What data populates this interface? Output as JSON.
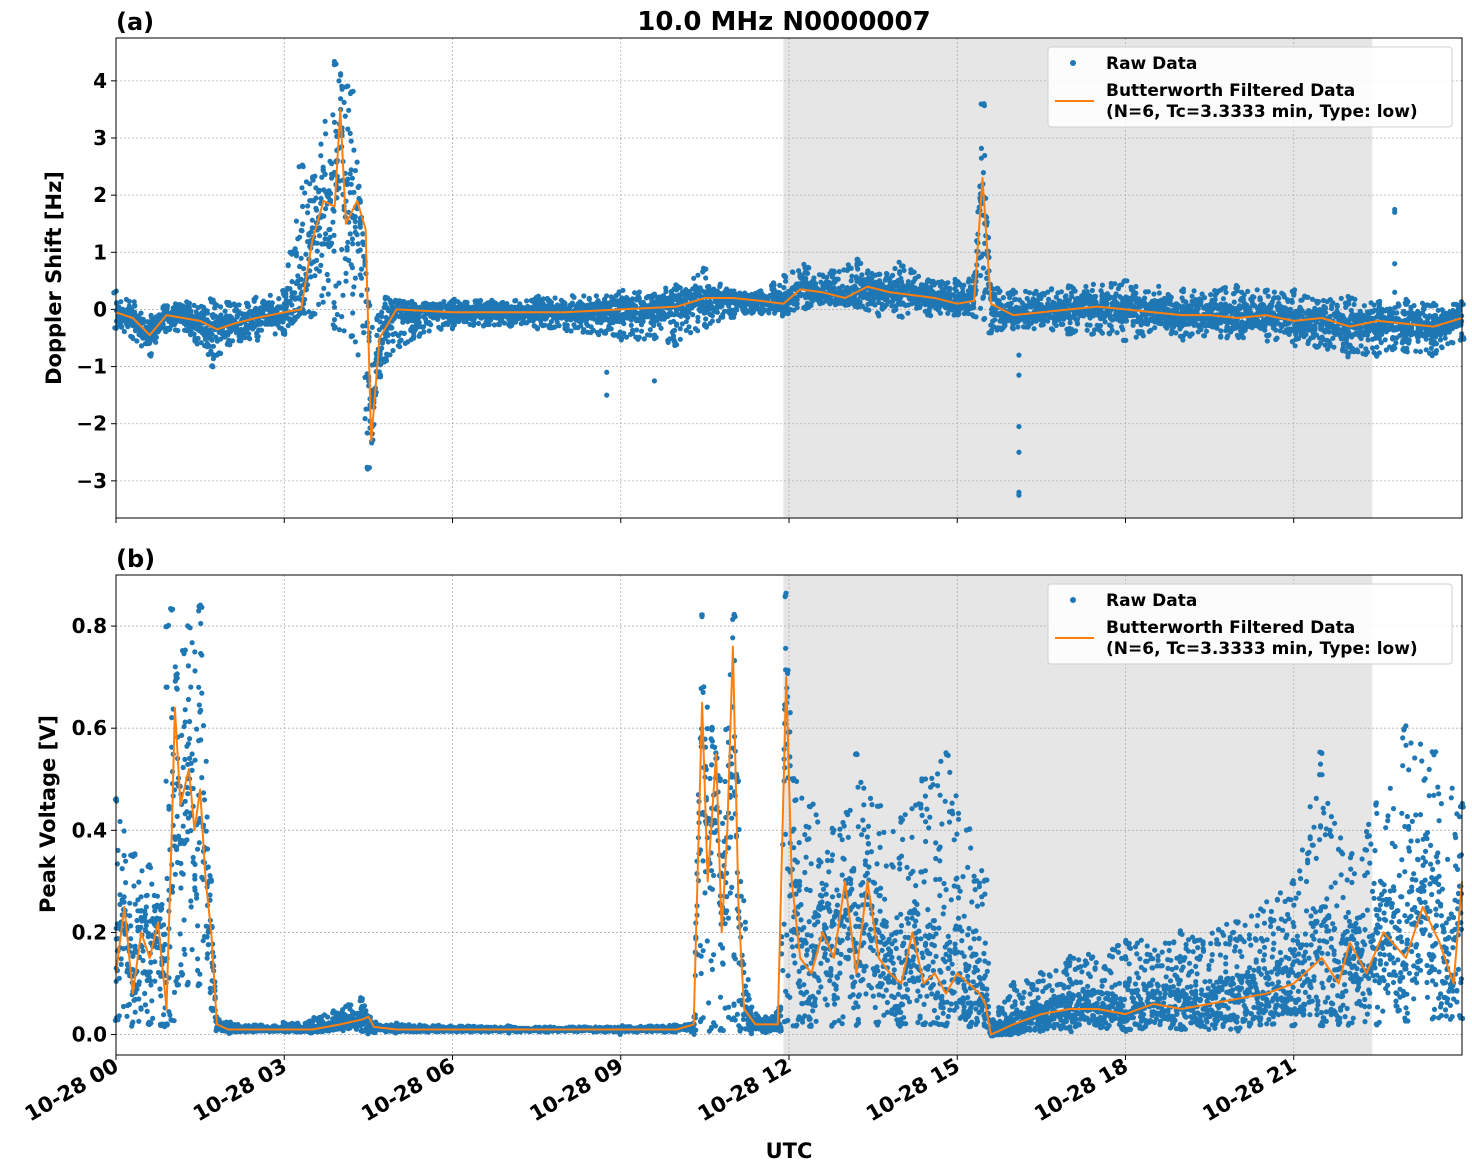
{
  "figure": {
    "title": "10.0 MHz N0000007",
    "xlabel": "UTC",
    "x_tick_labels": [
      "10-28 00",
      "10-28 03",
      "10-28 06",
      "10-28 09",
      "10-28 12",
      "10-28 15",
      "10-28 18",
      "10-28 21"
    ]
  },
  "colors": {
    "raw": "#1f77b4",
    "filtered": "#ff7f0e",
    "shade": "#e6e6e6",
    "grid": "#b0b0b0"
  },
  "chart_data": [
    {
      "panel_label": "(a)",
      "type": "line",
      "ylabel": "Doppler Shift [Hz]",
      "xlim_hours": [
        0,
        24
      ],
      "ylim": [
        -3.65,
        4.75
      ],
      "y_ticks": [
        4,
        3,
        2,
        1,
        0,
        -1,
        -2,
        -3
      ],
      "y_tick_labels": [
        "4",
        "3",
        "2",
        "1",
        "0",
        "−1",
        "−2",
        "−3"
      ],
      "shaded_span_hours": [
        11.9,
        22.4
      ],
      "legend": {
        "raw_label": "Raw Data",
        "filtered_label_line1": "Butterworth Filtered Data",
        "filtered_label_line2": "(N=6, Tc=3.3333 min, Type: low)",
        "placement": "top-right"
      },
      "raw_band": {
        "x": [
          0,
          0.3,
          0.6,
          0.9,
          1.3,
          1.7,
          2.0,
          2.5,
          3.0,
          3.3,
          3.5,
          3.9,
          4.2,
          4.5,
          4.8,
          5.3,
          6.0,
          7.5,
          9.0,
          10.0,
          10.5,
          11.0,
          11.5,
          11.9,
          12.3,
          12.8,
          13.2,
          13.6,
          14.0,
          14.5,
          15.0,
          15.3,
          15.45,
          15.6,
          16.0,
          17.0,
          18.0,
          19.0,
          20.0,
          21.0,
          22.0,
          22.5,
          23.0,
          23.5,
          24.0
        ],
        "high": [
          0.3,
          0.1,
          -0.1,
          0.1,
          0.1,
          0.15,
          0.1,
          0.2,
          0.3,
          2.5,
          2.3,
          4.3,
          3.8,
          0.1,
          0.2,
          0.1,
          0.15,
          0.2,
          0.3,
          0.4,
          0.7,
          0.3,
          0.3,
          0.6,
          0.75,
          0.65,
          0.9,
          0.6,
          0.8,
          0.5,
          0.5,
          0.6,
          3.6,
          0.4,
          0.3,
          0.4,
          0.5,
          0.35,
          0.4,
          0.3,
          0.2,
          0.1,
          0.15,
          0.1,
          0.1
        ],
        "low": [
          -0.3,
          -0.5,
          -0.8,
          -0.35,
          -0.4,
          -1.0,
          -0.6,
          -0.5,
          -0.4,
          -0.05,
          -0.1,
          -0.3,
          -0.5,
          -2.8,
          -0.9,
          -0.5,
          -0.3,
          -0.3,
          -0.5,
          -0.6,
          -0.3,
          -0.1,
          -0.05,
          -0.1,
          0.0,
          0.1,
          0.05,
          -0.1,
          -0.1,
          -0.1,
          -0.1,
          -0.1,
          -0.2,
          -0.4,
          -0.3,
          -0.4,
          -0.5,
          -0.5,
          -0.5,
          -0.6,
          -0.8,
          -0.8,
          -0.7,
          -0.8,
          -0.5
        ]
      },
      "raw_outliers": {
        "x": [
          8.75,
          8.75,
          9.6,
          16.1,
          16.1,
          16.1,
          16.1,
          16.1,
          16.1,
          22.8,
          22.8,
          22.8,
          22.8
        ],
        "y": [
          -1.1,
          -1.5,
          -1.25,
          -0.8,
          -1.15,
          -2.05,
          -2.5,
          -3.2,
          -3.25,
          1.75,
          1.7,
          0.8,
          0.3
        ]
      },
      "filtered": {
        "x": [
          0,
          0.3,
          0.6,
          0.9,
          1.2,
          1.5,
          1.8,
          2.1,
          2.5,
          3.0,
          3.3,
          3.5,
          3.7,
          3.9,
          4.0,
          4.1,
          4.3,
          4.45,
          4.55,
          4.7,
          5.0,
          6.0,
          7.0,
          8.0,
          9.0,
          10.0,
          10.5,
          11.0,
          11.5,
          11.9,
          12.2,
          12.6,
          13.0,
          13.4,
          13.8,
          14.2,
          14.6,
          15.0,
          15.3,
          15.45,
          15.6,
          16.0,
          16.5,
          17.0,
          17.5,
          18.0,
          18.5,
          19.0,
          19.5,
          20.0,
          20.5,
          21.0,
          21.5,
          22.0,
          22.5,
          23.0,
          23.5,
          24.0
        ],
        "y": [
          -0.05,
          -0.15,
          -0.45,
          -0.1,
          -0.15,
          -0.2,
          -0.35,
          -0.25,
          -0.15,
          -0.05,
          0.0,
          1.2,
          1.9,
          1.8,
          3.5,
          1.5,
          1.9,
          1.4,
          -2.3,
          -0.5,
          0.0,
          -0.05,
          -0.05,
          -0.05,
          0.0,
          0.05,
          0.2,
          0.2,
          0.15,
          0.1,
          0.35,
          0.3,
          0.2,
          0.4,
          0.3,
          0.25,
          0.2,
          0.1,
          0.15,
          2.3,
          0.1,
          -0.1,
          -0.05,
          0.0,
          0.05,
          0.0,
          -0.05,
          -0.1,
          -0.1,
          -0.15,
          -0.1,
          -0.2,
          -0.15,
          -0.3,
          -0.2,
          -0.25,
          -0.3,
          -0.15
        ]
      }
    },
    {
      "panel_label": "(b)",
      "type": "line",
      "ylabel": "Peak Voltage [V]",
      "xlim_hours": [
        0,
        24
      ],
      "ylim": [
        -0.04,
        0.9
      ],
      "y_ticks": [
        0.8,
        0.6,
        0.4,
        0.2,
        0.0
      ],
      "y_tick_labels": [
        "0.8",
        "0.6",
        "0.4",
        "0.2",
        "0.0"
      ],
      "shaded_span_hours": [
        11.9,
        22.4
      ],
      "legend": {
        "raw_label": "Raw Data",
        "filtered_label_line1": "Butterworth Filtered Data",
        "filtered_label_line2": "(N=6, Tc=3.3333 min, Type: low)",
        "placement": "top-right"
      },
      "raw_band": {
        "x": [
          0,
          0.3,
          0.6,
          0.8,
          0.9,
          1.0,
          1.1,
          1.2,
          1.3,
          1.5,
          1.7,
          1.8,
          2.0,
          3.0,
          3.5,
          4.4,
          4.5,
          4.6,
          5.0,
          7.0,
          9.0,
          10.3,
          10.45,
          10.6,
          10.8,
          11.0,
          11.1,
          11.3,
          11.6,
          11.85,
          11.95,
          12.1,
          12.4,
          12.8,
          13.2,
          13.6,
          14.0,
          14.4,
          14.8,
          15.2,
          15.5,
          15.6,
          16.0,
          16.5,
          17.0,
          18.0,
          19.0,
          20.0,
          21.0,
          21.5,
          22.0,
          22.5,
          23.0,
          23.5,
          24.0
        ],
        "high": [
          0.46,
          0.35,
          0.33,
          0.25,
          0.8,
          0.83,
          0.7,
          0.75,
          0.8,
          0.84,
          0.3,
          0.03,
          0.02,
          0.02,
          0.03,
          0.07,
          0.03,
          0.02,
          0.02,
          0.015,
          0.015,
          0.02,
          0.82,
          0.6,
          0.5,
          0.82,
          0.5,
          0.05,
          0.03,
          0.05,
          0.86,
          0.5,
          0.45,
          0.4,
          0.55,
          0.45,
          0.42,
          0.5,
          0.55,
          0.4,
          0.3,
          0.03,
          0.1,
          0.12,
          0.15,
          0.18,
          0.2,
          0.22,
          0.3,
          0.55,
          0.35,
          0.45,
          0.6,
          0.55,
          0.45
        ],
        "low": [
          0.03,
          0.02,
          0.02,
          0.02,
          0.02,
          0.03,
          0.1,
          0.12,
          0.1,
          0.1,
          0.05,
          0.01,
          0.005,
          0.005,
          0.005,
          0.005,
          0.005,
          0.005,
          0.005,
          0.005,
          0.005,
          0.005,
          0.03,
          0.01,
          0.01,
          0.03,
          0.01,
          0.005,
          0.005,
          0.01,
          0.03,
          0.02,
          0.02,
          0.02,
          0.02,
          0.02,
          0.02,
          0.02,
          0.02,
          0.02,
          0.02,
          0.0,
          0.0,
          0.01,
          0.01,
          0.01,
          0.01,
          0.01,
          0.02,
          0.02,
          0.02,
          0.02,
          0.03,
          0.03,
          0.03
        ]
      },
      "raw_outliers": {
        "x": [],
        "y": []
      },
      "filtered": {
        "x": [
          0,
          0.15,
          0.3,
          0.45,
          0.6,
          0.75,
          0.9,
          1.0,
          1.05,
          1.15,
          1.3,
          1.4,
          1.5,
          1.6,
          1.7,
          1.8,
          2.0,
          2.5,
          3.0,
          3.5,
          4.0,
          4.4,
          4.5,
          4.6,
          5.0,
          6.0,
          7.0,
          8.0,
          9.0,
          10.0,
          10.3,
          10.45,
          10.55,
          10.7,
          10.8,
          10.9,
          11.0,
          11.1,
          11.2,
          11.4,
          11.6,
          11.8,
          11.95,
          12.05,
          12.2,
          12.4,
          12.6,
          12.8,
          13.0,
          13.2,
          13.4,
          13.6,
          13.8,
          14.0,
          14.2,
          14.4,
          14.6,
          14.8,
          15.0,
          15.2,
          15.4,
          15.5,
          15.6,
          16.0,
          16.5,
          17.0,
          17.5,
          18.0,
          18.5,
          19.0,
          19.5,
          20.0,
          20.5,
          21.0,
          21.2,
          21.5,
          21.8,
          22.0,
          22.3,
          22.6,
          23.0,
          23.3,
          23.6,
          23.85,
          24.0
        ],
        "y": [
          0.12,
          0.25,
          0.08,
          0.2,
          0.15,
          0.22,
          0.05,
          0.42,
          0.64,
          0.45,
          0.52,
          0.4,
          0.48,
          0.3,
          0.2,
          0.02,
          0.01,
          0.01,
          0.01,
          0.01,
          0.02,
          0.03,
          0.035,
          0.015,
          0.01,
          0.01,
          0.01,
          0.01,
          0.01,
          0.01,
          0.02,
          0.65,
          0.3,
          0.55,
          0.2,
          0.4,
          0.76,
          0.25,
          0.05,
          0.02,
          0.02,
          0.02,
          0.7,
          0.3,
          0.15,
          0.12,
          0.2,
          0.15,
          0.3,
          0.12,
          0.3,
          0.15,
          0.12,
          0.1,
          0.2,
          0.1,
          0.12,
          0.08,
          0.12,
          0.1,
          0.08,
          0.06,
          0.0,
          0.02,
          0.04,
          0.05,
          0.05,
          0.04,
          0.06,
          0.05,
          0.06,
          0.07,
          0.08,
          0.1,
          0.12,
          0.15,
          0.1,
          0.18,
          0.12,
          0.2,
          0.15,
          0.25,
          0.18,
          0.1,
          0.3
        ]
      }
    }
  ]
}
